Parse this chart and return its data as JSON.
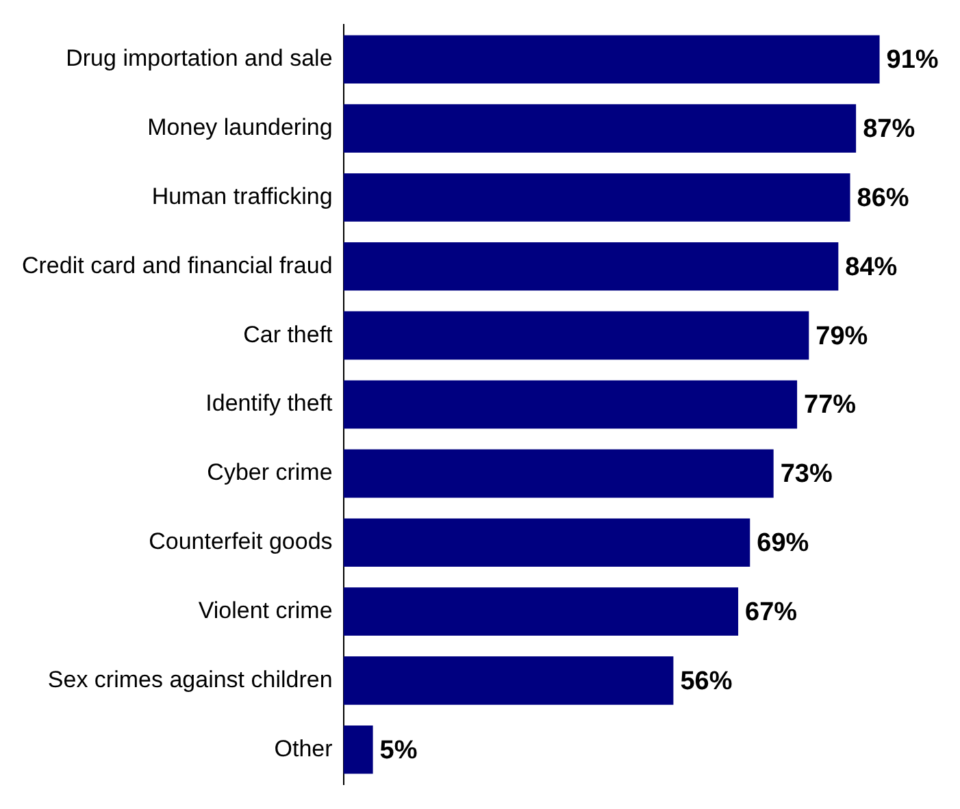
{
  "chart_data": {
    "type": "bar",
    "orientation": "horizontal",
    "categories": [
      "Drug importation and sale",
      "Money laundering",
      "Human trafficking",
      "Credit card and financial fraud",
      "Car theft",
      "Identify theft",
      "Cyber crime",
      "Counterfeit goods",
      "Violent crime",
      "Sex crimes against children",
      "Other"
    ],
    "values": [
      91,
      87,
      86,
      84,
      79,
      77,
      73,
      69,
      67,
      56,
      5
    ],
    "value_labels": [
      "91%",
      "87%",
      "86%",
      "84%",
      "79%",
      "77%",
      "73%",
      "69%",
      "67%",
      "56%",
      "5%"
    ],
    "color": "#000080",
    "grid": false,
    "legend": false,
    "tick_labels": "y"
  }
}
